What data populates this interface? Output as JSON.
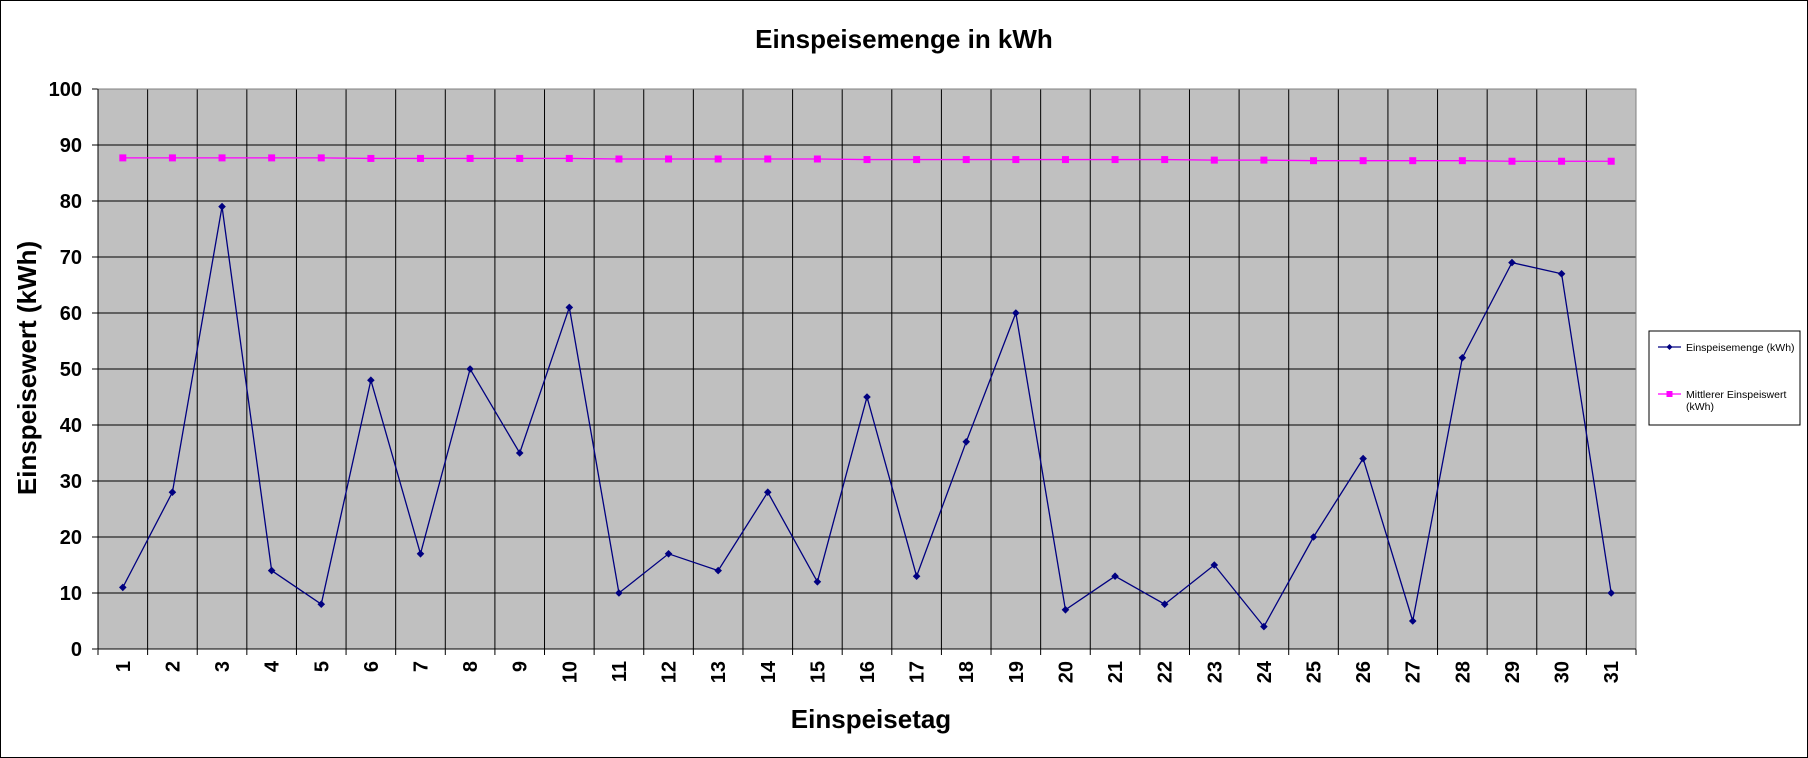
{
  "chart_data": {
    "type": "line",
    "title": "Einspeisemenge in kWh",
    "xlabel": "Einspeisetag",
    "ylabel": "Einspeisewert  (kWh)",
    "categories": [
      "1",
      "2",
      "3",
      "4",
      "5",
      "6",
      "7",
      "8",
      "9",
      "10",
      "11",
      "12",
      "13",
      "14",
      "15",
      "16",
      "17",
      "18",
      "19",
      "20",
      "21",
      "22",
      "23",
      "24",
      "25",
      "26",
      "27",
      "28",
      "29",
      "30",
      "31"
    ],
    "ylim": [
      0,
      100
    ],
    "yticks": [
      0,
      10,
      20,
      30,
      40,
      50,
      60,
      70,
      80,
      90,
      100
    ],
    "grid": true,
    "legend_position": "right",
    "plot_background": "#c0c0c0",
    "series": [
      {
        "name": "Einspeisemenge (kWh)",
        "color": "#000080",
        "marker": "diamond",
        "values": [
          11,
          28,
          79,
          14,
          8,
          48,
          17,
          50,
          35,
          61,
          10,
          17,
          14,
          28,
          12,
          45,
          13,
          37,
          60,
          7,
          13,
          8,
          15,
          4,
          20,
          34,
          5,
          52,
          69,
          67,
          10
        ]
      },
      {
        "name_lines": [
          "Mittlerer Einspeiswert",
          "(kWh)"
        ],
        "color": "#ff00ff",
        "marker": "square",
        "values": [
          87.7,
          87.7,
          87.7,
          87.7,
          87.7,
          87.6,
          87.6,
          87.6,
          87.6,
          87.6,
          87.5,
          87.5,
          87.5,
          87.5,
          87.5,
          87.4,
          87.4,
          87.4,
          87.4,
          87.4,
          87.4,
          87.4,
          87.3,
          87.3,
          87.2,
          87.2,
          87.2,
          87.2,
          87.1,
          87.1,
          87.1
        ]
      }
    ]
  }
}
